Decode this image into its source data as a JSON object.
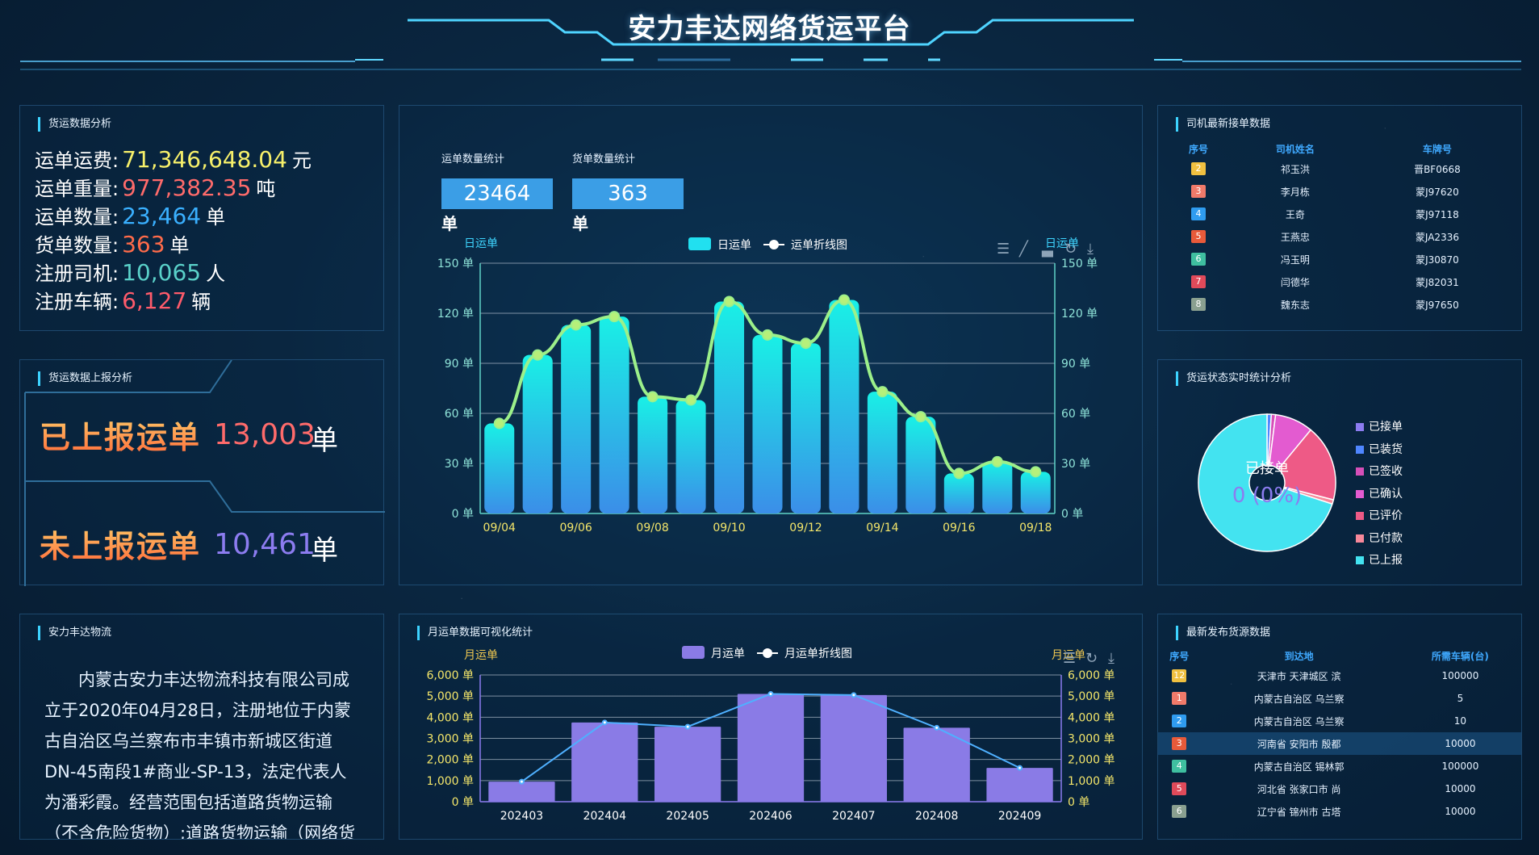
{
  "header": {
    "title": "安力丰达网络货运平台"
  },
  "freight_analysis": {
    "title": "货运数据分析",
    "rows": [
      {
        "label": "运单运费:",
        "value": "71,346,648.04",
        "unit": "元",
        "color": "#f7f06a"
      },
      {
        "label": "运单重量:",
        "value": "977,382.35",
        "unit": "吨",
        "color": "#ff6b6b"
      },
      {
        "label": "运单数量:",
        "value": "23,464",
        "unit": "单",
        "color": "#3ab0ff"
      },
      {
        "label": "货单数量:",
        "value": "363",
        "unit": "单",
        "color": "#ff6b4a"
      },
      {
        "label": "注册司机:",
        "value": "10,065",
        "unit": "人",
        "color": "#5ad1c9"
      },
      {
        "label": "注册车辆:",
        "value": "6,127",
        "unit": "辆",
        "color": "#ff5b6b"
      }
    ]
  },
  "report_analysis": {
    "title": "货运数据上报分析",
    "reported_label": "已上报运单",
    "reported_value": "13,003",
    "reported_unit": "单",
    "unreported_label": "未上报运单",
    "unreported_value": "10,461",
    "unreported_unit": "单"
  },
  "center_stats": {
    "waybill_count_label": "运单数量统计",
    "waybill_count": "23464",
    "waybill_unit": "单",
    "cargo_count_label": "货单数量统计",
    "cargo_count": "363",
    "cargo_unit": "单"
  },
  "icons": [
    "data-view-icon",
    "line-chart-icon",
    "bar-chart-icon",
    "refresh-icon",
    "download-icon"
  ],
  "chart_data": [
    {
      "type": "bar",
      "ylabel_left": "日运单",
      "ylabel_right": "日运单",
      "categories": [
        "09/04",
        "09/05",
        "09/06",
        "09/07",
        "09/08",
        "09/09",
        "09/10",
        "09/11",
        "09/12",
        "09/13",
        "09/14",
        "09/15",
        "09/16",
        "09/17",
        "09/18"
      ],
      "x_tick_labels": [
        "09/04",
        "09/06",
        "09/08",
        "09/10",
        "09/12",
        "09/14",
        "09/16",
        "09/18"
      ],
      "series": [
        {
          "name": "日运单",
          "kind": "bar",
          "values": [
            54,
            95,
            113,
            118,
            70,
            68,
            127,
            107,
            102,
            128,
            73,
            58,
            24,
            31,
            25
          ],
          "color": "#21e0f0"
        },
        {
          "name": "运单折线图",
          "kind": "line",
          "values": [
            54,
            95,
            113,
            118,
            70,
            68,
            127,
            107,
            102,
            128,
            73,
            58,
            24,
            31,
            25
          ],
          "color": "#9cf08a"
        }
      ],
      "ylim": [
        0,
        150
      ],
      "yticks": [
        "0 单",
        "30 单",
        "60 单",
        "90 单",
        "120 单",
        "150 单"
      ],
      "grid": true,
      "legend": "top-center"
    },
    {
      "type": "bar",
      "title": "月运单数据可视化统计",
      "ylabel_left": "月运单",
      "ylabel_right": "月运单",
      "categories": [
        "202403",
        "202404",
        "202405",
        "202406",
        "202407",
        "202408",
        "202409"
      ],
      "series": [
        {
          "name": "月运单",
          "kind": "bar",
          "values": [
            950,
            3750,
            3550,
            5100,
            5050,
            3500,
            1600
          ],
          "color": "#8a7be6"
        },
        {
          "name": "月运单折线图",
          "kind": "line",
          "values": [
            950,
            3750,
            3550,
            5100,
            5050,
            3500,
            1600
          ],
          "color": "#4fb0ff"
        }
      ],
      "ylim": [
        0,
        6000
      ],
      "yticks": [
        "0 单",
        "1,000 单",
        "2,000 单",
        "3,000 单",
        "4,000 单",
        "5,000 单",
        "6,000 单"
      ],
      "grid": true,
      "legend": "top-center"
    },
    {
      "type": "pie",
      "title": "货运状态实时统计分析",
      "center_label": "已接单",
      "center_value": "0 (0%)",
      "slices": [
        {
          "name": "已接单",
          "value": 0,
          "color": "#8c7cf0"
        },
        {
          "name": "已装货",
          "value": 1,
          "color": "#4f86ff"
        },
        {
          "name": "已签收",
          "value": 1,
          "color": "#d64fb8"
        },
        {
          "name": "已确认",
          "value": 9,
          "color": "#e35bd0"
        },
        {
          "name": "已评价",
          "value": 18,
          "color": "#ee5a86"
        },
        {
          "name": "已付款",
          "value": 1,
          "color": "#f7889a"
        },
        {
          "name": "已上报",
          "value": 70,
          "color": "#43e3f0"
        }
      ],
      "legend": "right"
    }
  ],
  "drivers": {
    "title": "司机最新接单数据",
    "columns": [
      "序号",
      "司机姓名",
      "车牌号"
    ],
    "rows": [
      {
        "no": "2",
        "name": "祁玉洪",
        "plate": "晋BF0668",
        "color": "#f0c040"
      },
      {
        "no": "3",
        "name": "李月栋",
        "plate": "蒙J97620",
        "color": "#f07a6a"
      },
      {
        "no": "4",
        "name": "王奇",
        "plate": "蒙J97118",
        "color": "#2f9cf0"
      },
      {
        "no": "5",
        "name": "王燕忠",
        "plate": "蒙JA2336",
        "color": "#e85a3a"
      },
      {
        "no": "6",
        "name": "冯玉明",
        "plate": "蒙J30870",
        "color": "#3fbfa0"
      },
      {
        "no": "7",
        "name": "闫德华",
        "plate": "蒙J82031",
        "color": "#e04a5a"
      },
      {
        "no": "8",
        "name": "魏东志",
        "plate": "蒙J97650",
        "color": "#8aa090"
      }
    ]
  },
  "company": {
    "title": "安力丰达物流",
    "text": "内蒙古安力丰达物流科技有限公司成立于2020年04月28日，注册地位于内蒙古自治区乌兰察布市丰镇市新城区街道DN-45南段1#商业-SP-13，法定代表人为潘彩霞。经营范围包括道路货物运输（不含危险货物）;道路货物运输（网络货运）;互联网"
  },
  "sources": {
    "title": "最新发布货源数据",
    "columns": [
      "序号",
      "到达地",
      "所需车辆(台)"
    ],
    "rows": [
      {
        "no": "12",
        "dest": "天津市 天津城区 滨",
        "count": "100000",
        "color": "#f0c040"
      },
      {
        "no": "1",
        "dest": "内蒙古自治区 乌兰察",
        "count": "5",
        "color": "#f07a6a"
      },
      {
        "no": "2",
        "dest": "内蒙古自治区 乌兰察",
        "count": "10",
        "color": "#2f9cf0"
      },
      {
        "no": "3",
        "dest": "河南省 安阳市 殷都",
        "count": "10000",
        "color": "#e85a3a"
      },
      {
        "no": "4",
        "dest": "内蒙古自治区 锡林郭",
        "count": "100000",
        "color": "#3fbfa0"
      },
      {
        "no": "5",
        "dest": "河北省 张家口市 尚",
        "count": "10000",
        "color": "#e04a5a"
      },
      {
        "no": "6",
        "dest": "辽宁省 锦州市 古塔",
        "count": "10000",
        "color": "#8aa090"
      }
    ]
  }
}
